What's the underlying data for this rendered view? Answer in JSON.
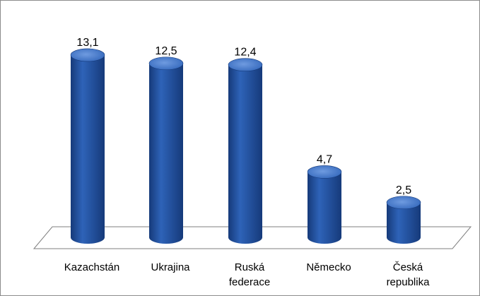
{
  "chart_data": {
    "type": "bar",
    "style": "3d-cylinder",
    "categories": [
      "Kazachstán",
      "Ukrajina",
      "Ruská federace",
      "Německo",
      "Česká republika"
    ],
    "category_lines": [
      [
        "Kazachstán"
      ],
      [
        "Ukrajina"
      ],
      [
        "Ruská",
        "federace"
      ],
      [
        "Německo"
      ],
      [
        "Česká",
        "republika"
      ]
    ],
    "values": [
      13.1,
      12.5,
      12.4,
      4.7,
      2.5
    ],
    "value_labels": [
      "13,1",
      "12,5",
      "12,4",
      "4,7",
      "2,5"
    ],
    "ylim": [
      0,
      15
    ],
    "grid": false,
    "legend": "none",
    "colors": {
      "bar": "#2e63b8",
      "bar_dark": "#163a7a",
      "bar_light": "#6f9be0",
      "floor_stroke": "#7f7f7f"
    }
  }
}
